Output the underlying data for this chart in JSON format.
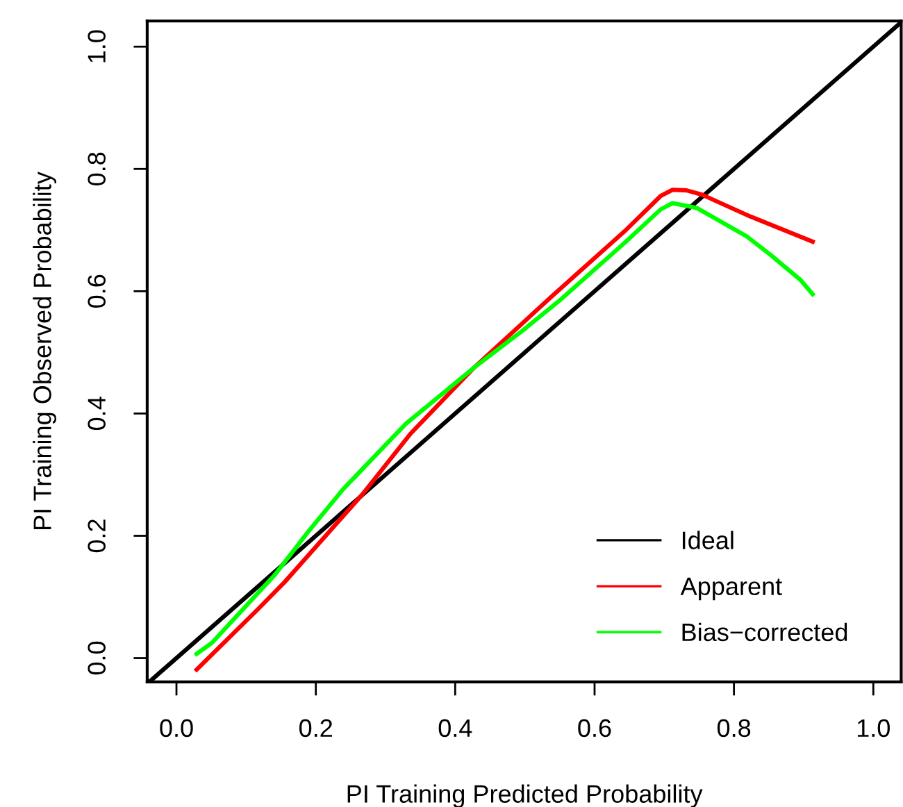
{
  "chart_data": {
    "type": "line",
    "xlabel": "PI Training Predicted Probability",
    "ylabel": "PI Training Observed Probability",
    "xlim": [
      -0.042,
      1.04
    ],
    "ylim": [
      -0.039,
      1.042
    ],
    "xticks": [
      {
        "value": 0,
        "label": "0.0"
      },
      0.2,
      0.4,
      0.6,
      0.8,
      {
        "value": 1,
        "label": "1.0"
      }
    ],
    "yticks": [
      {
        "value": 0,
        "label": "0.0"
      },
      0.2,
      0.4,
      0.6,
      0.8,
      {
        "value": 1,
        "label": "1.0"
      }
    ],
    "grid": false,
    "legend": "bottom right",
    "series": [
      {
        "name": "Ideal",
        "color": "#000000",
        "x": [
          -0.039,
          1.04
        ],
        "values": [
          -0.039,
          1.04
        ]
      },
      {
        "name": "Apparent",
        "color": "#ff0000",
        "x": [
          0.029,
          0.117,
          0.155,
          0.267,
          0.336,
          0.427,
          0.538,
          0.643,
          0.695,
          0.712,
          0.732,
          0.754,
          0.824,
          0.913
        ],
        "values": [
          -0.019,
          0.08,
          0.124,
          0.268,
          0.367,
          0.475,
          0.591,
          0.698,
          0.756,
          0.766,
          0.765,
          0.758,
          0.722,
          0.681
        ]
      },
      {
        "name": "Bias−corrected",
        "color": "#00ff00",
        "x": [
          0.029,
          0.051,
          0.141,
          0.19,
          0.239,
          0.329,
          0.427,
          0.496,
          0.552,
          0.643,
          0.695,
          0.712,
          0.747,
          0.818,
          0.853,
          0.895,
          0.913
        ],
        "values": [
          0.007,
          0.025,
          0.136,
          0.208,
          0.276,
          0.383,
          0.475,
          0.535,
          0.587,
          0.679,
          0.734,
          0.744,
          0.736,
          0.69,
          0.659,
          0.619,
          0.595
        ]
      }
    ]
  }
}
